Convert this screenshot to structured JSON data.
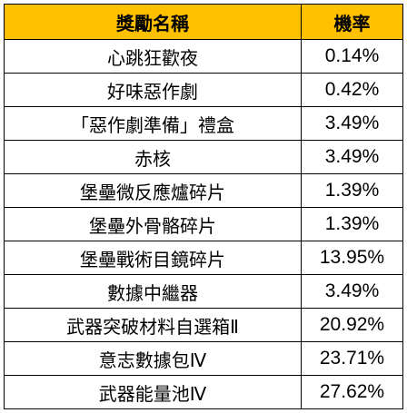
{
  "header": {
    "name_label": "獎勵名稱",
    "rate_label": "機率"
  },
  "rows": [
    {
      "name": "心跳狂歡夜",
      "rate": "0.14%"
    },
    {
      "name": "好味惡作劇",
      "rate": "0.42%"
    },
    {
      "name": "「惡作劇準備」禮盒",
      "rate": "3.49%"
    },
    {
      "name": "赤核",
      "rate": "3.49%"
    },
    {
      "name": "堡壘微反應爐碎片",
      "rate": "1.39%"
    },
    {
      "name": "堡壘外骨骼碎片",
      "rate": "1.39%"
    },
    {
      "name": "堡壘戰術目鏡碎片",
      "rate": "13.95%"
    },
    {
      "name": "數據中繼器",
      "rate": "3.49%"
    },
    {
      "name": "武器突破材料自選箱Ⅱ",
      "rate": "20.92%"
    },
    {
      "name": "意志數據包Ⅳ",
      "rate": "23.71%"
    },
    {
      "name": "武器能量池Ⅳ",
      "rate": "27.62%"
    }
  ],
  "colors": {
    "header_bg": "#ffc000",
    "border": "#000000",
    "cell_bg": "#ffffff"
  }
}
